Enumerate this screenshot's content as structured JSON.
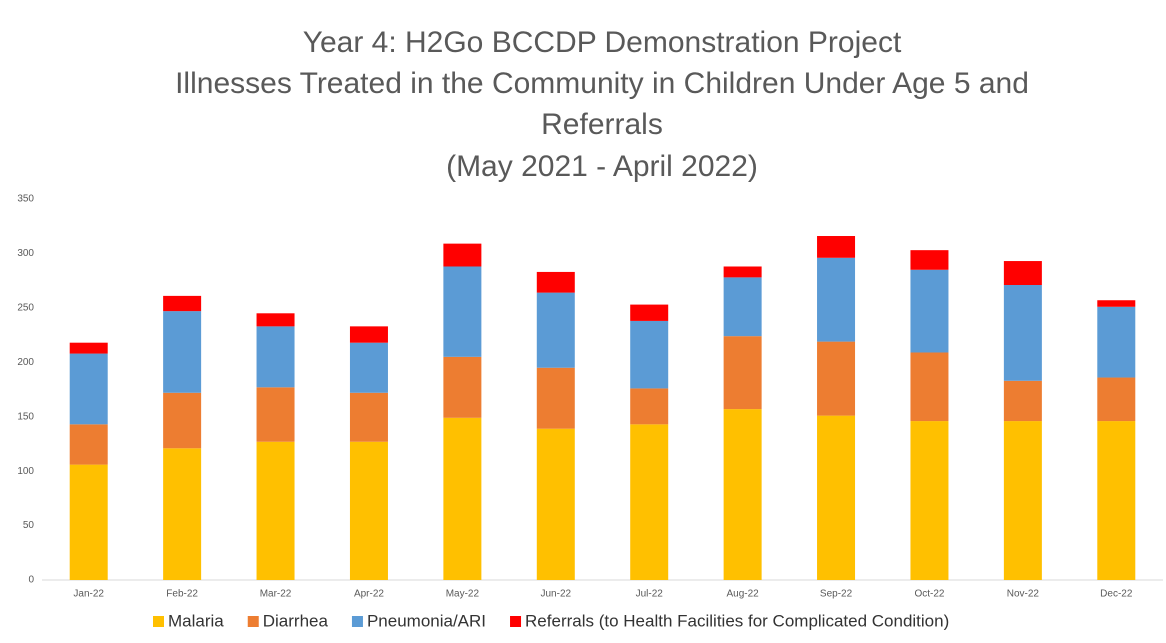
{
  "chart_data": {
    "type": "stacked_bar",
    "title": [
      "Year 4: H2Go BCCDP Demonstration Project",
      "Illnesses Treated in the Community in Children Under Age 5 and",
      "Referrals",
      "(May 2021 - April 2022)"
    ],
    "categories": [
      "Jan-22",
      "Feb-22",
      "Mar-22",
      "Apr-22",
      "May-22",
      "Jun-22",
      "Jul-22",
      "Aug-22",
      "Sep-22",
      "Oct-22",
      "Nov-22",
      "Dec-22"
    ],
    "series": [
      {
        "name": "Malaria",
        "color": "#ffc000",
        "values": [
          106,
          121,
          127,
          127,
          149,
          139,
          143,
          157,
          151,
          146,
          146,
          146
        ]
      },
      {
        "name": "Diarrhea",
        "color": "#ed7d31",
        "values": [
          37,
          51,
          50,
          45,
          56,
          56,
          33,
          67,
          68,
          63,
          37,
          40
        ]
      },
      {
        "name": "Pneumonia/ARI",
        "color": "#5b9bd5",
        "values": [
          65,
          75,
          56,
          46,
          83,
          69,
          62,
          54,
          77,
          76,
          88,
          65
        ]
      },
      {
        "name": "Referrals (to Health Facilities for Complicated Condition)",
        "color": "#ff0000",
        "values": [
          10,
          14,
          12,
          15,
          21,
          19,
          15,
          10,
          20,
          18,
          22,
          6
        ]
      }
    ],
    "ylim": [
      0,
      350
    ],
    "yticks": [
      0,
      50,
      100,
      150,
      200,
      250,
      300,
      350
    ],
    "grid": false,
    "legend": "bottom"
  }
}
